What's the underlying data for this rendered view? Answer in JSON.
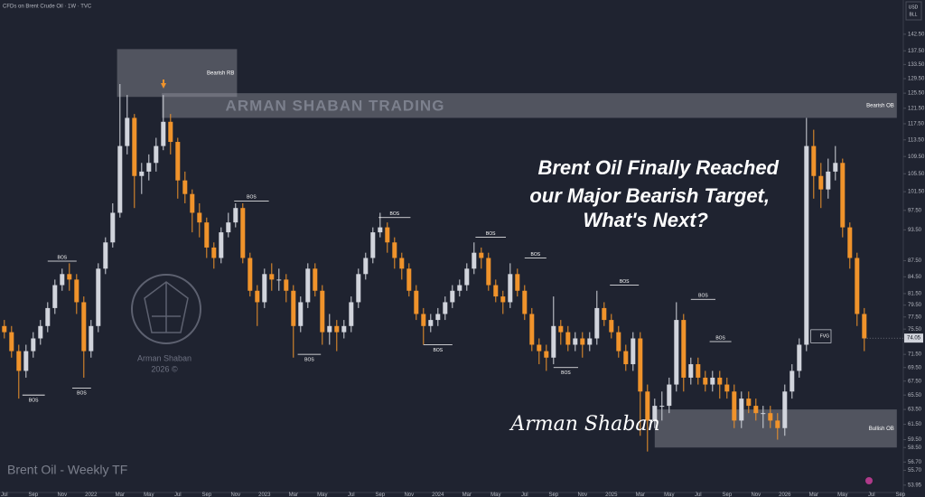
{
  "chart_data": {
    "type": "candlestick",
    "symbol_info": "CFDs on Brent Crude Oil · 1W · TVC",
    "currency": [
      "USD",
      "BLL"
    ],
    "headline": [
      "Brent Oil Finally Reached",
      "our Major Bearish Target,",
      "What's Next?"
    ],
    "watermark": "ARMAN SHABAN TRADING",
    "logo_text": [
      "Arman Shaban",
      "2026 ©"
    ],
    "signature": "Arman Shaban",
    "footer_title": "Brent Oil - Weekly TF",
    "log_scale": true,
    "up_color": "#d1d4dc",
    "down_color": "#f0932b",
    "xlim": [
      -0.3,
      62.2
    ],
    "ylim": [
      53.1,
      153.4
    ],
    "xticks": [
      {
        "value": 0,
        "label": "Jul"
      },
      {
        "value": 2,
        "label": "Sep"
      },
      {
        "value": 4,
        "label": "Nov"
      },
      {
        "value": 6,
        "label": "2022"
      },
      {
        "value": 8,
        "label": "Mar"
      },
      {
        "value": 10,
        "label": "May"
      },
      {
        "value": 12,
        "label": "Jul"
      },
      {
        "value": 14,
        "label": "Sep"
      },
      {
        "value": 16,
        "label": "Nov"
      },
      {
        "value": 18,
        "label": "2023"
      },
      {
        "value": 20,
        "label": "Mar"
      },
      {
        "value": 22,
        "label": "May"
      },
      {
        "value": 24,
        "label": "Jul"
      },
      {
        "value": 26,
        "label": "Sep"
      },
      {
        "value": 28,
        "label": "Nov"
      },
      {
        "value": 30,
        "label": "2024"
      },
      {
        "value": 32,
        "label": "Mar"
      },
      {
        "value": 34,
        "label": "May"
      },
      {
        "value": 36,
        "label": "Jul"
      },
      {
        "value": 38,
        "label": "Sep"
      },
      {
        "value": 40,
        "label": "Nov"
      },
      {
        "value": 42,
        "label": "2025"
      },
      {
        "value": 44,
        "label": "Mar"
      },
      {
        "value": 46,
        "label": "May"
      },
      {
        "value": 48,
        "label": "Jul"
      },
      {
        "value": 50,
        "label": "Sep"
      },
      {
        "value": 52,
        "label": "Nov"
      },
      {
        "value": 54,
        "label": "2026"
      },
      {
        "value": 56,
        "label": "Mar"
      },
      {
        "value": 58,
        "label": "May"
      },
      {
        "value": 60,
        "label": "Jul"
      },
      {
        "value": 62,
        "label": "Sep"
      }
    ],
    "yticks": [
      {
        "value": 142.5,
        "label": "142.50"
      },
      {
        "value": 137.5,
        "label": "137.50"
      },
      {
        "value": 133.5,
        "label": "133.50"
      },
      {
        "value": 129.5,
        "label": "129.50"
      },
      {
        "value": 125.5,
        "label": "125.50"
      },
      {
        "value": 121.5,
        "label": "121.50"
      },
      {
        "value": 117.5,
        "label": "117.50"
      },
      {
        "value": 113.5,
        "label": "113.50"
      },
      {
        "value": 109.5,
        "label": "109.50"
      },
      {
        "value": 105.5,
        "label": "105.50"
      },
      {
        "value": 101.5,
        "label": "101.50"
      },
      {
        "value": 97.5,
        "label": "97.50"
      },
      {
        "value": 93.5,
        "label": "93.50"
      },
      {
        "value": 87.5,
        "label": "87.50"
      },
      {
        "value": 84.5,
        "label": "84.50"
      },
      {
        "value": 81.5,
        "label": "81.50"
      },
      {
        "value": 79.5,
        "label": "79.50"
      },
      {
        "value": 77.5,
        "label": "77.50"
      },
      {
        "value": 75.5,
        "label": "75.50"
      },
      {
        "value": 71.5,
        "label": "71.50"
      },
      {
        "value": 69.5,
        "label": "69.50"
      },
      {
        "value": 67.5,
        "label": "67.50"
      },
      {
        "value": 65.5,
        "label": "65.50"
      },
      {
        "value": 63.5,
        "label": "63.50"
      },
      {
        "value": 61.5,
        "label": "61.50"
      },
      {
        "value": 59.5,
        "label": "59.50"
      },
      {
        "value": 58.5,
        "label": "58.50"
      },
      {
        "value": 56.7,
        "label": "56.70"
      },
      {
        "value": 55.7,
        "label": "55.70"
      },
      {
        "value": 53.95,
        "label": "53.95"
      }
    ],
    "last_price": 74.05,
    "x": [
      0,
      0.5,
      1,
      1.5,
      2,
      2.5,
      3,
      3.5,
      4,
      4.5,
      5,
      5.5,
      6,
      6.5,
      7,
      7.5,
      8,
      8.5,
      9,
      9.5,
      10,
      10.5,
      11,
      11.5,
      12,
      12.5,
      13,
      13.5,
      14,
      14.5,
      15,
      15.5,
      16,
      16.5,
      17,
      17.5,
      18,
      18.5,
      19,
      19.5,
      20,
      20.5,
      21,
      21.5,
      22,
      22.5,
      23,
      23.5,
      24,
      24.5,
      25,
      25.5,
      26,
      26.5,
      27,
      27.5,
      28,
      28.5,
      29,
      29.5,
      30,
      30.5,
      31,
      31.5,
      32,
      32.5,
      33,
      33.5,
      34,
      34.5,
      35,
      35.5,
      36,
      36.5,
      37,
      37.5,
      38,
      38.5,
      39,
      39.5,
      40,
      40.5,
      41,
      41.5,
      42,
      42.5,
      43,
      43.5,
      44,
      44.5,
      45,
      45.5,
      46,
      46.5,
      47,
      47.5,
      48,
      48.5,
      49,
      49.5,
      50,
      50.5,
      51,
      51.5,
      52,
      52.5,
      53,
      53.5,
      54,
      54.5,
      55,
      55.5,
      56,
      56.5,
      57,
      57.5,
      58,
      58.5,
      59,
      59.5
    ],
    "open": [
      76,
      75,
      72,
      69,
      72,
      74,
      76,
      79,
      83,
      85,
      84,
      80,
      72,
      76,
      86,
      91,
      97,
      112,
      119,
      105,
      106,
      108,
      112,
      118,
      113,
      104,
      101,
      97,
      95,
      90,
      88,
      93,
      95,
      98,
      88,
      82,
      80,
      85,
      84,
      84,
      82,
      76,
      80,
      86,
      82,
      75,
      76,
      75,
      76,
      80,
      85,
      88,
      93,
      94,
      91,
      88,
      86,
      82,
      78,
      76,
      77,
      78,
      80,
      82,
      83,
      86,
      89,
      88,
      83,
      81,
      80,
      85,
      82,
      78,
      73,
      72,
      71,
      76,
      75,
      73,
      74,
      73,
      74,
      79,
      77,
      75,
      72,
      70,
      74,
      66,
      62,
      64,
      64,
      67,
      77,
      68,
      70,
      68,
      67,
      68,
      67,
      66,
      62,
      65,
      64,
      63,
      63,
      62,
      61,
      66,
      69,
      73,
      112,
      105,
      102,
      106,
      108,
      94,
      88,
      78
    ],
    "high": [
      77,
      76,
      73,
      73,
      75,
      77,
      80,
      84,
      86,
      87,
      85,
      81,
      77,
      87,
      92,
      99,
      128,
      125,
      120,
      108,
      110,
      114,
      125,
      120,
      114,
      106,
      102,
      99,
      96,
      91,
      94,
      97,
      99,
      99,
      89,
      83,
      86,
      87,
      86,
      85,
      83,
      81,
      87,
      87,
      83,
      78,
      77,
      77,
      81,
      86,
      89,
      94,
      97,
      95,
      92,
      89,
      87,
      83,
      79,
      78,
      79,
      81,
      83,
      84,
      87,
      91,
      90,
      89,
      84,
      82,
      87,
      86,
      83,
      79,
      74,
      73,
      81,
      77,
      76,
      75,
      75,
      75,
      82,
      80,
      78,
      76,
      73,
      75,
      75,
      67,
      65,
      66,
      68,
      80,
      78,
      71,
      71,
      69,
      69,
      69,
      68,
      67,
      66,
      66,
      65,
      64,
      64,
      63,
      67,
      70,
      74,
      119,
      116,
      108,
      109,
      112,
      109,
      95,
      89,
      79
    ],
    "low": [
      74,
      71,
      65,
      68,
      71,
      73,
      75,
      78,
      82,
      82,
      78,
      68,
      71,
      75,
      85,
      90,
      96,
      110,
      98,
      101,
      104,
      106,
      111,
      110,
      100,
      99,
      93,
      92,
      88,
      86,
      87,
      92,
      94,
      87,
      81,
      76,
      79,
      82,
      82,
      80,
      71,
      75,
      79,
      81,
      73,
      73,
      72,
      74,
      75,
      79,
      84,
      87,
      92,
      89,
      86,
      84,
      81,
      77,
      73,
      75,
      76,
      77,
      79,
      81,
      82,
      85,
      86,
      82,
      80,
      78,
      79,
      81,
      77,
      72,
      70,
      69,
      70,
      73,
      72,
      72,
      71,
      72,
      73,
      76,
      74,
      71,
      69,
      69,
      60,
      58,
      61,
      62,
      63,
      66,
      66,
      67,
      67,
      66,
      66,
      65,
      65,
      61,
      61,
      63,
      62,
      61,
      61,
      59.5,
      60,
      65,
      68,
      72,
      100,
      98,
      100,
      104,
      92,
      86,
      76,
      72
    ],
    "close": [
      75,
      72,
      69,
      72,
      74,
      76,
      79,
      83,
      85,
      84,
      80,
      72,
      76,
      86,
      91,
      97,
      112,
      119,
      105,
      106,
      108,
      112,
      118,
      113,
      104,
      101,
      97,
      95,
      90,
      88,
      93,
      95,
      98,
      88,
      82,
      80,
      85,
      84,
      84,
      82,
      76,
      80,
      86,
      82,
      75,
      76,
      75,
      76,
      80,
      85,
      88,
      93,
      94,
      91,
      88,
      86,
      82,
      78,
      76,
      77,
      78,
      80,
      82,
      83,
      86,
      89,
      88,
      83,
      81,
      80,
      85,
      82,
      78,
      73,
      72,
      71,
      76,
      75,
      73,
      74,
      73,
      74,
      79,
      77,
      75,
      72,
      70,
      74,
      66,
      62,
      64,
      64,
      67,
      77,
      68,
      70,
      68,
      67,
      68,
      67,
      66,
      62,
      65,
      64,
      63,
      63,
      62,
      61,
      66,
      69,
      73,
      112,
      105,
      102,
      106,
      108,
      94,
      88,
      78,
      74
    ],
    "zones": [
      {
        "label": "Bearish RB",
        "price_range": [
          124.5,
          138
        ],
        "x_range": [
          7.8,
          16.1
        ]
      },
      {
        "label": "Bearish OB",
        "price_range": [
          119,
          125.5
        ],
        "x_range": [
          10.9,
          61.75
        ]
      },
      {
        "label": "Bullish OB",
        "price_range": [
          58.5,
          63.5
        ],
        "x_range": [
          45,
          61.75
        ]
      }
    ],
    "bos": [
      {
        "label": "BOS",
        "price": 87.4,
        "x_range": [
          3,
          5
        ],
        "label_position": "above"
      },
      {
        "label": "BOS",
        "price": 65.5,
        "x_range": [
          1.25,
          2.8
        ],
        "label_position": "below"
      },
      {
        "label": "BOS",
        "price": 66.5,
        "x_range": [
          4.7,
          6
        ],
        "label_position": "below"
      },
      {
        "label": "BOS",
        "price": 99.5,
        "x_range": [
          15.9,
          18.3
        ],
        "label_position": "above"
      },
      {
        "label": "BOS",
        "price": 71.5,
        "x_range": [
          20.3,
          21.9
        ],
        "label_position": "below"
      },
      {
        "label": "BOS",
        "price": 96,
        "x_range": [
          25.9,
          28.1
        ],
        "label_position": "above"
      },
      {
        "label": "BOS",
        "price": 73,
        "x_range": [
          29,
          31
        ],
        "label_position": "below"
      },
      {
        "label": "BOS",
        "price": 92,
        "x_range": [
          32.6,
          34.7
        ],
        "label_position": "above"
      },
      {
        "label": "BOS",
        "price": 88,
        "x_range": [
          36,
          37.5
        ],
        "label_position": "above"
      },
      {
        "label": "BOS",
        "price": 69.5,
        "x_range": [
          38,
          39.7
        ],
        "label_position": "below"
      },
      {
        "label": "BOS",
        "price": 83,
        "x_range": [
          41.9,
          43.9
        ],
        "label_position": "above"
      },
      {
        "label": "BOS",
        "price": 80.5,
        "x_range": [
          47.5,
          49.2
        ],
        "label_position": "above"
      },
      {
        "label": "BOS",
        "price": 73.5,
        "x_range": [
          48.8,
          50.3
        ],
        "label_position": "above"
      }
    ],
    "fvg": {
      "label": "FVG",
      "price_range": [
        73.3,
        75.4
      ],
      "x_range": [
        55.8,
        57.2
      ]
    }
  }
}
